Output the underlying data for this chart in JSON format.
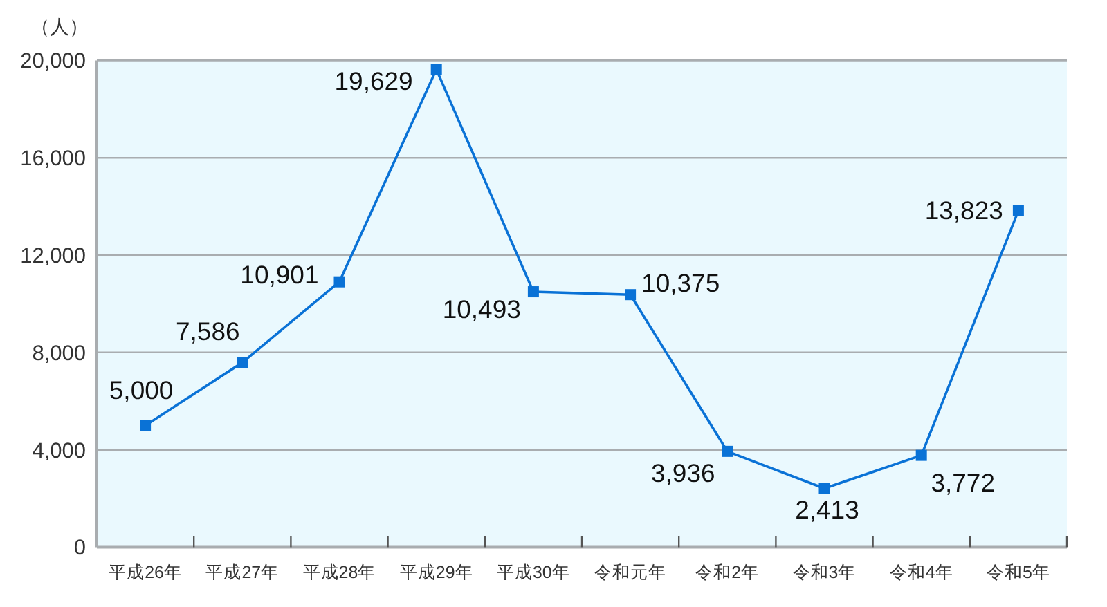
{
  "chart_data": {
    "type": "line",
    "ylabel": "（人）",
    "categories": [
      "平成26年",
      "平成27年",
      "平成28年",
      "平成29年",
      "平成30年",
      "令和元年",
      "令和2年",
      "令和3年",
      "令和4年",
      "令和5年"
    ],
    "series": [
      {
        "color": "#0a72d6",
        "values": [
          5000,
          7586,
          10901,
          19629,
          10493,
          10375,
          3936,
          2413,
          3772,
          13823
        ],
        "value_labels": [
          "5,000",
          "7,586",
          "10,901",
          "19,629",
          "10,493",
          "10,375",
          "3,936",
          "2,413",
          "3,772",
          "13,823"
        ]
      }
    ],
    "ylim": [
      0,
      20000
    ],
    "yticks": [
      0,
      {
        "value": 4000,
        "label": "4,000"
      },
      {
        "value": 8000,
        "label": "8,000"
      },
      {
        "value": 12000,
        "label": "12,000"
      },
      {
        "value": 16000,
        "label": "16,000"
      },
      {
        "value": 20000,
        "label": "20,000"
      }
    ],
    "grid": "y",
    "marker": "square",
    "line_style": "solid"
  }
}
